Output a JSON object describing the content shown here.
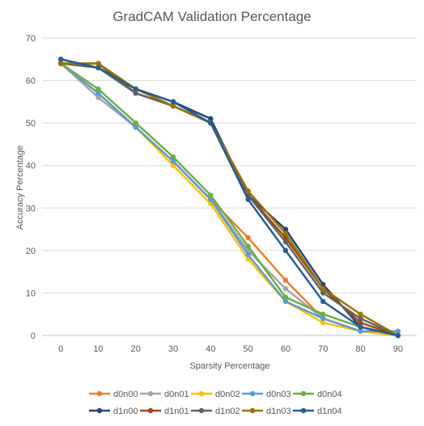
{
  "chart_data": {
    "type": "line",
    "title": "GradCAM Validation Percentage",
    "xlabel": "Sparsity Percentage",
    "ylabel": "Accuracy Percentage",
    "x": [
      0,
      10,
      20,
      30,
      40,
      50,
      60,
      70,
      80,
      90
    ],
    "xticks": [
      "0",
      "10",
      "20",
      "30",
      "40",
      "50",
      "60",
      "70",
      "80",
      "90"
    ],
    "ylim": [
      0,
      70
    ],
    "yticks": [
      "0",
      "10",
      "20",
      "30",
      "40",
      "50",
      "60",
      "70"
    ],
    "grid": true,
    "legend_position": "bottom",
    "series": [
      {
        "name": "d0n00",
        "color": "#ED7D31",
        "values": [
          64,
          57,
          49,
          41,
          32,
          23,
          13,
          4,
          1,
          0
        ]
      },
      {
        "name": "d0n01",
        "color": "#A5A5A5",
        "values": [
          64,
          56,
          49,
          41,
          32,
          20,
          11,
          4,
          1,
          0
        ]
      },
      {
        "name": "d0n02",
        "color": "#FFC000",
        "values": [
          64,
          57,
          49,
          40,
          31,
          18,
          8,
          3,
          1,
          0
        ]
      },
      {
        "name": "d0n03",
        "color": "#5B9BD5",
        "values": [
          64,
          57,
          49,
          41,
          32,
          19,
          8,
          4,
          1,
          1
        ]
      },
      {
        "name": "d0n04",
        "color": "#70AD47",
        "values": [
          64,
          58,
          50,
          42,
          33,
          21,
          9,
          5,
          2,
          0
        ]
      },
      {
        "name": "d1n00",
        "color": "#264478",
        "values": [
          65,
          63,
          58,
          55,
          51,
          33,
          25,
          12,
          2,
          0
        ]
      },
      {
        "name": "d1n01",
        "color": "#9E480E",
        "values": [
          64,
          64,
          57,
          54,
          50,
          33,
          23,
          11,
          3,
          0
        ]
      },
      {
        "name": "d1n02",
        "color": "#636363",
        "values": [
          64,
          63,
          57,
          54,
          50,
          33,
          22,
          10,
          4,
          0
        ]
      },
      {
        "name": "d1n03",
        "color": "#997300",
        "values": [
          64,
          64,
          58,
          54,
          50,
          34,
          24,
          11,
          5,
          0
        ]
      },
      {
        "name": "d1n04",
        "color": "#255E91",
        "values": [
          65,
          63,
          58,
          55,
          50,
          32,
          20,
          8,
          2,
          0
        ]
      }
    ]
  }
}
